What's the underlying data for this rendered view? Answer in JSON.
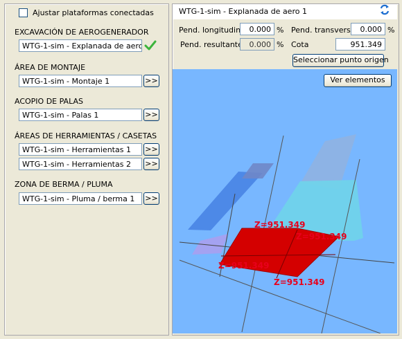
{
  "left": {
    "adjust_checkbox_label": "Ajustar plataformas conectadas",
    "sections": {
      "excavacion": {
        "title": "EXCAVACIÓN DE AEROGENERADOR",
        "value": "WTG-1-sim - Explanada de aero 1"
      },
      "montaje": {
        "title": "ÁREA DE MONTAJE",
        "value": "WTG-1-sim - Montaje 1"
      },
      "palas": {
        "title": "ACOPIO DE PALAS",
        "value": "WTG-1-sim - Palas 1"
      },
      "herramientas": {
        "title": "ÁREAS DE HERRAMIENTAS / CASETAS",
        "value1": "WTG-1-sim - Herramientas 1",
        "value2": "WTG-1-sim - Herramientas 2"
      },
      "berma": {
        "title": "ZONA DE BERMA / PLUMA",
        "value": "WTG-1-sim - Pluma / berma 1"
      }
    },
    "more_button_label": ">>"
  },
  "right": {
    "title": "WTG-1-sim - Explanada de aero 1",
    "refresh_icon": "refresh-icon",
    "pend_long_label": "Pend. longitudinal",
    "pend_long_value": "0.000",
    "pend_trans_label": "Pend. transversal",
    "pend_trans_value": "0.000",
    "pend_res_label": "Pend. resultante",
    "pend_res_value": "0.000",
    "pct": "%",
    "cota_label": "Cota",
    "cota_value": "951.349",
    "select_origin_button": "Seleccionar punto origen",
    "view_elements_button": "Ver elementos"
  },
  "viewport": {
    "z_labels": [
      "Z=951.349",
      "Z=951.349",
      "Z=951.349",
      "Z=951.349"
    ],
    "colors": {
      "background": "#78b7ff",
      "platform": "#d40000",
      "label": "#e8001c"
    }
  }
}
